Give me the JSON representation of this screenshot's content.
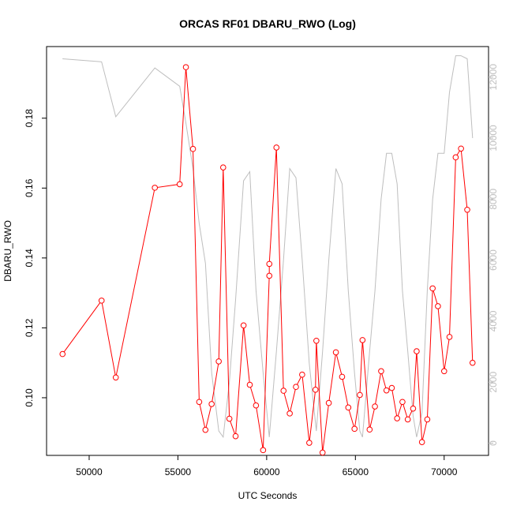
{
  "chart_data": {
    "type": "line",
    "title": "ORCAS RF01 DBARU_RWO (Log)",
    "xlabel": "UTC Seconds",
    "ylabel": "DBARU_RWO",
    "xlim": [
      47600,
      72500
    ],
    "ylim": [
      0.0835,
      0.2005
    ],
    "y2lim": [
      -400,
      13000
    ],
    "x_ticks": [
      50000,
      55000,
      60000,
      65000,
      70000
    ],
    "y_ticks": [
      0.1,
      0.12,
      0.14,
      0.16,
      0.18
    ],
    "y_tick_labels": [
      "0.10",
      "0.12",
      "0.14",
      "0.16",
      "0.18"
    ],
    "y2_ticks": [
      0,
      2000,
      4000,
      6000,
      8000,
      10000,
      12000
    ],
    "colors": {
      "primary": "#ff0000",
      "secondary": "#bebebe",
      "axis": "#000000"
    },
    "series": [
      {
        "axis": "left",
        "color": "#ff0000",
        "marker": "circle",
        "x": [
          48500,
          50700,
          51500,
          53700,
          55100,
          55450,
          55850,
          56200,
          56550,
          56900,
          57300,
          57550,
          57900,
          58250,
          58700,
          59050,
          59400,
          59800,
          60150,
          60150,
          60550,
          60950,
          61300,
          61650,
          62000,
          62400,
          62750,
          62800,
          63150,
          63500,
          63900,
          64250,
          64600,
          64950,
          65250,
          65400,
          65800,
          66100,
          66450,
          66750,
          67050,
          67350,
          67650,
          67950,
          68250,
          68450,
          68750,
          69050,
          69350,
          69650,
          70000,
          70300,
          70650,
          70950,
          71300,
          71600
        ],
        "y": [
          0.1125,
          0.1278,
          0.1058,
          0.1601,
          0.1611,
          0.1946,
          0.1712,
          0.0988,
          0.0908,
          0.0982,
          0.1104,
          0.1659,
          0.094,
          0.089,
          0.1207,
          0.1037,
          0.0978,
          0.085,
          0.1349,
          0.1383,
          0.1716,
          0.102,
          0.0955,
          0.1031,
          0.1066,
          0.0871,
          0.1023,
          0.1163,
          0.0843,
          0.0985,
          0.113,
          0.106,
          0.0972,
          0.0911,
          0.1008,
          0.1165,
          0.0909,
          0.0975,
          0.1076,
          0.1021,
          0.1028,
          0.0941,
          0.0988,
          0.0938,
          0.0969,
          0.1133,
          0.0873,
          0.0938,
          0.1313,
          0.1262,
          0.1076,
          0.1174,
          0.1688,
          0.1713,
          0.1538,
          0.11
        ]
      },
      {
        "axis": "right",
        "color": "#bebebe",
        "marker": "none",
        "x": [
          48500,
          50700,
          51500,
          53700,
          55100,
          55450,
          55850,
          56200,
          56550,
          56900,
          57300,
          57550,
          57900,
          58250,
          58700,
          59050,
          59400,
          59800,
          60150,
          60550,
          60950,
          61300,
          61650,
          62000,
          62400,
          62800,
          63150,
          63500,
          63900,
          64250,
          64600,
          64950,
          65250,
          65400,
          65800,
          66100,
          66450,
          66750,
          67050,
          67350,
          67650,
          67950,
          68250,
          68450,
          68750,
          69050,
          69350,
          69650,
          70000,
          70300,
          70650,
          70950,
          71300,
          71600
        ],
        "y": [
          12600,
          12500,
          10700,
          12300,
          11700,
          10500,
          9000,
          7200,
          5900,
          2300,
          400,
          200,
          2000,
          4700,
          8600,
          8900,
          5000,
          2300,
          200,
          3000,
          6000,
          9000,
          8700,
          6000,
          2600,
          400,
          3000,
          6000,
          9000,
          8500,
          5000,
          2300,
          400,
          200,
          3000,
          5000,
          8000,
          9500,
          9500,
          8500,
          5000,
          3000,
          900,
          200,
          1000,
          5000,
          8000,
          9500,
          9500,
          11500,
          12700,
          12700,
          12600,
          10000
        ]
      }
    ]
  }
}
